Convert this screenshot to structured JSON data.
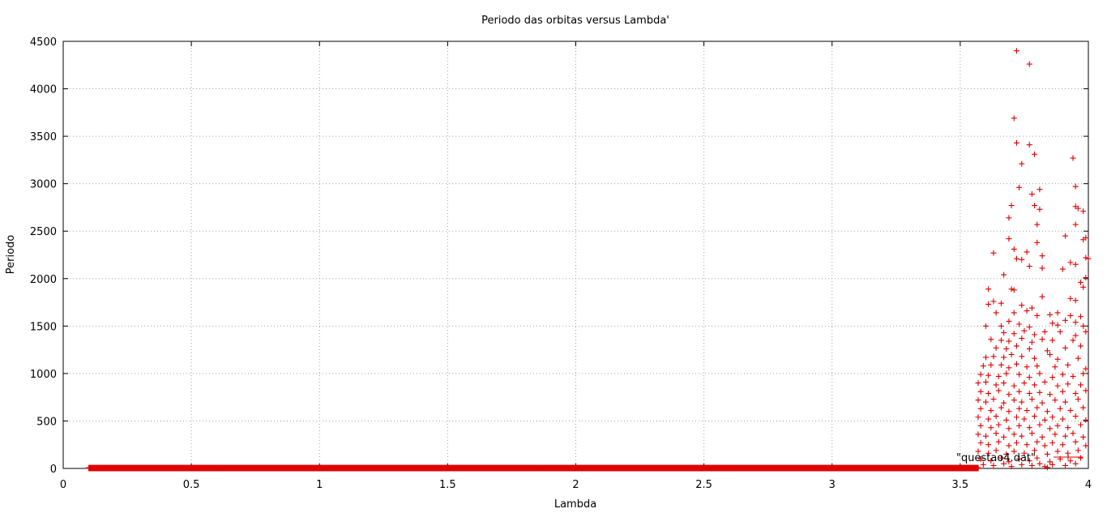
{
  "chart_data": {
    "type": "scatter",
    "title": "Periodo das orbitas versus Lambda'",
    "xlabel": "Lambda",
    "ylabel": "Periodo",
    "xlim": [
      0,
      4
    ],
    "ylim": [
      0,
      4500
    ],
    "xticks": [
      0,
      0.5,
      1,
      1.5,
      2,
      2.5,
      3,
      3.5,
      4
    ],
    "yticks": [
      0,
      500,
      1000,
      1500,
      2000,
      2500,
      3000,
      3500,
      4000,
      4500
    ],
    "xtick_labels": [
      "0",
      "0.5",
      "1",
      "1.5",
      "2",
      "2.5",
      "3",
      "3.5",
      "4"
    ],
    "ytick_labels": [
      "0",
      "500",
      "1000",
      "1500",
      "2000",
      "2500",
      "3000",
      "3500",
      "4000",
      "4500"
    ],
    "grid": true,
    "legend_position": "bottom-right",
    "marker": "plus",
    "color": "#e00000",
    "series": [
      {
        "name": "\"questao4.dat\"",
        "low_band": {
          "x_start": 0.1,
          "x_end": 3.57,
          "x_step": 0.002,
          "y_values": [
            1,
            2,
            4,
            8
          ]
        },
        "points": [
          [
            3.72,
            4400
          ],
          [
            3.77,
            4260
          ],
          [
            3.71,
            3690
          ],
          [
            3.72,
            3430
          ],
          [
            3.77,
            3410
          ],
          [
            3.79,
            3310
          ],
          [
            3.74,
            3210
          ],
          [
            3.94,
            3270
          ],
          [
            3.95,
            2970
          ],
          [
            3.73,
            2960
          ],
          [
            3.81,
            2940
          ],
          [
            3.78,
            2890
          ],
          [
            3.7,
            2770
          ],
          [
            3.79,
            2770
          ],
          [
            3.81,
            2730
          ],
          [
            3.95,
            2760
          ],
          [
            3.96,
            2740
          ],
          [
            3.98,
            2710
          ],
          [
            3.69,
            2640
          ],
          [
            3.95,
            2570
          ],
          [
            3.8,
            2570
          ],
          [
            3.91,
            2450
          ],
          [
            3.69,
            2420
          ],
          [
            3.98,
            2410
          ],
          [
            3.99,
            2430
          ],
          [
            3.71,
            2310
          ],
          [
            3.76,
            2280
          ],
          [
            3.8,
            2380
          ],
          [
            3.63,
            2270
          ],
          [
            3.72,
            2210
          ],
          [
            3.74,
            2200
          ],
          [
            3.82,
            2240
          ],
          [
            3.99,
            2220
          ],
          [
            4.0,
            2210
          ],
          [
            3.77,
            2130
          ],
          [
            3.82,
            2110
          ],
          [
            3.9,
            2100
          ],
          [
            3.93,
            2170
          ],
          [
            3.95,
            2150
          ],
          [
            3.67,
            2040
          ],
          [
            3.99,
            2010
          ],
          [
            3.97,
            1960
          ],
          [
            3.98,
            1910
          ],
          [
            3.7,
            1890
          ],
          [
            3.71,
            1880
          ],
          [
            3.61,
            1890
          ],
          [
            3.82,
            1810
          ],
          [
            3.93,
            1790
          ],
          [
            3.95,
            1770
          ],
          [
            3.63,
            1760
          ],
          [
            3.61,
            1730
          ],
          [
            3.66,
            1740
          ],
          [
            3.74,
            1720
          ],
          [
            3.78,
            1690
          ],
          [
            3.76,
            1660
          ],
          [
            3.88,
            1640
          ],
          [
            3.64,
            1640
          ],
          [
            3.71,
            1640
          ],
          [
            3.8,
            1610
          ],
          [
            3.85,
            1620
          ],
          [
            3.93,
            1610
          ],
          [
            3.97,
            1600
          ],
          [
            3.6,
            1500
          ],
          [
            3.66,
            1500
          ],
          [
            3.69,
            1550
          ],
          [
            3.73,
            1520
          ],
          [
            3.77,
            1490
          ],
          [
            3.86,
            1530
          ],
          [
            3.88,
            1510
          ],
          [
            3.91,
            1560
          ],
          [
            3.95,
            1540
          ],
          [
            3.98,
            1500
          ],
          [
            3.67,
            1430
          ],
          [
            3.71,
            1420
          ],
          [
            3.75,
            1450
          ],
          [
            3.79,
            1410
          ],
          [
            3.83,
            1440
          ],
          [
            3.89,
            1440
          ],
          [
            3.95,
            1400
          ],
          [
            3.99,
            1440
          ],
          [
            3.62,
            1360
          ],
          [
            3.66,
            1350
          ],
          [
            3.69,
            1340
          ],
          [
            3.74,
            1370
          ],
          [
            3.78,
            1330
          ],
          [
            3.82,
            1360
          ],
          [
            3.86,
            1350
          ],
          [
            3.94,
            1350
          ],
          [
            3.64,
            1270
          ],
          [
            3.68,
            1260
          ],
          [
            3.72,
            1290
          ],
          [
            3.77,
            1260
          ],
          [
            3.84,
            1240
          ],
          [
            3.91,
            1270
          ],
          [
            3.97,
            1290
          ],
          [
            3.6,
            1170
          ],
          [
            3.63,
            1180
          ],
          [
            3.67,
            1170
          ],
          [
            3.7,
            1200
          ],
          [
            3.74,
            1180
          ],
          [
            3.79,
            1160
          ],
          [
            3.85,
            1200
          ],
          [
            3.88,
            1150
          ],
          [
            3.96,
            1160
          ],
          [
            3.59,
            1080
          ],
          [
            3.62,
            1090
          ],
          [
            3.66,
            1090
          ],
          [
            3.69,
            1060
          ],
          [
            3.72,
            1100
          ],
          [
            3.76,
            1070
          ],
          [
            3.8,
            1080
          ],
          [
            3.87,
            1070
          ],
          [
            3.92,
            1090
          ],
          [
            3.99,
            1050
          ],
          [
            3.58,
            990
          ],
          [
            3.61,
            980
          ],
          [
            3.65,
            970
          ],
          [
            3.68,
            1000
          ],
          [
            3.73,
            990
          ],
          [
            3.77,
            960
          ],
          [
            3.81,
            1000
          ],
          [
            3.86,
            960
          ],
          [
            3.9,
            990
          ],
          [
            3.94,
            970
          ],
          [
            3.98,
            1000
          ],
          [
            3.57,
            900
          ],
          [
            3.6,
            910
          ],
          [
            3.64,
            880
          ],
          [
            3.67,
            900
          ],
          [
            3.71,
            870
          ],
          [
            3.75,
            900
          ],
          [
            3.79,
            880
          ],
          [
            3.83,
            910
          ],
          [
            3.88,
            870
          ],
          [
            3.92,
            890
          ],
          [
            3.97,
            880
          ],
          [
            3.58,
            810
          ],
          [
            3.61,
            790
          ],
          [
            3.65,
            820
          ],
          [
            3.69,
            780
          ],
          [
            3.73,
            810
          ],
          [
            3.77,
            790
          ],
          [
            3.81,
            800
          ],
          [
            3.85,
            780
          ],
          [
            3.9,
            810
          ],
          [
            3.95,
            790
          ],
          [
            3.99,
            820
          ],
          [
            3.57,
            720
          ],
          [
            3.6,
            700
          ],
          [
            3.63,
            730
          ],
          [
            3.67,
            690
          ],
          [
            3.71,
            720
          ],
          [
            3.74,
            700
          ],
          [
            3.78,
            730
          ],
          [
            3.82,
            690
          ],
          [
            3.87,
            720
          ],
          [
            3.91,
            700
          ],
          [
            3.96,
            730
          ],
          [
            3.58,
            630
          ],
          [
            3.62,
            610
          ],
          [
            3.66,
            640
          ],
          [
            3.69,
            600
          ],
          [
            3.73,
            630
          ],
          [
            3.76,
            610
          ],
          [
            3.8,
            640
          ],
          [
            3.84,
            600
          ],
          [
            3.89,
            630
          ],
          [
            3.93,
            610
          ],
          [
            3.98,
            640
          ],
          [
            3.57,
            540
          ],
          [
            3.61,
            520
          ],
          [
            3.64,
            550
          ],
          [
            3.68,
            510
          ],
          [
            3.72,
            540
          ],
          [
            3.75,
            520
          ],
          [
            3.79,
            550
          ],
          [
            3.83,
            510
          ],
          [
            3.86,
            540
          ],
          [
            3.9,
            520
          ],
          [
            3.95,
            550
          ],
          [
            3.99,
            510
          ],
          [
            3.58,
            450
          ],
          [
            3.62,
            430
          ],
          [
            3.65,
            460
          ],
          [
            3.69,
            420
          ],
          [
            3.73,
            450
          ],
          [
            3.77,
            430
          ],
          [
            3.81,
            460
          ],
          [
            3.85,
            420
          ],
          [
            3.88,
            450
          ],
          [
            3.92,
            430
          ],
          [
            3.97,
            460
          ],
          [
            3.57,
            360
          ],
          [
            3.6,
            340
          ],
          [
            3.64,
            370
          ],
          [
            3.67,
            330
          ],
          [
            3.71,
            360
          ],
          [
            3.74,
            340
          ],
          [
            3.78,
            370
          ],
          [
            3.82,
            330
          ],
          [
            3.87,
            360
          ],
          [
            3.91,
            340
          ],
          [
            3.94,
            370
          ],
          [
            3.98,
            330
          ],
          [
            3.58,
            270
          ],
          [
            3.61,
            250
          ],
          [
            3.65,
            280
          ],
          [
            3.69,
            240
          ],
          [
            3.72,
            270
          ],
          [
            3.76,
            250
          ],
          [
            3.8,
            280
          ],
          [
            3.83,
            240
          ],
          [
            3.86,
            270
          ],
          [
            3.9,
            250
          ],
          [
            3.95,
            280
          ],
          [
            3.99,
            240
          ],
          [
            3.57,
            180
          ],
          [
            3.61,
            160
          ],
          [
            3.64,
            190
          ],
          [
            3.68,
            150
          ],
          [
            3.71,
            180
          ],
          [
            3.75,
            160
          ],
          [
            3.79,
            190
          ],
          [
            3.84,
            150
          ],
          [
            3.88,
            180
          ],
          [
            3.92,
            160
          ],
          [
            3.96,
            190
          ],
          [
            3.58,
            100
          ],
          [
            3.62,
            80
          ],
          [
            3.66,
            110
          ],
          [
            3.69,
            70
          ],
          [
            3.73,
            100
          ],
          [
            3.77,
            80
          ],
          [
            3.8,
            110
          ],
          [
            3.85,
            70
          ],
          [
            3.89,
            100
          ],
          [
            3.93,
            80
          ],
          [
            3.97,
            110
          ],
          [
            3.59,
            40
          ],
          [
            3.63,
            30
          ],
          [
            3.67,
            50
          ],
          [
            3.7,
            20
          ],
          [
            3.74,
            40
          ],
          [
            3.78,
            30
          ],
          [
            3.81,
            50
          ],
          [
            3.83,
            20
          ],
          [
            3.84,
            10
          ],
          [
            3.86,
            40
          ],
          [
            3.91,
            30
          ],
          [
            3.95,
            50
          ]
        ]
      }
    ]
  }
}
